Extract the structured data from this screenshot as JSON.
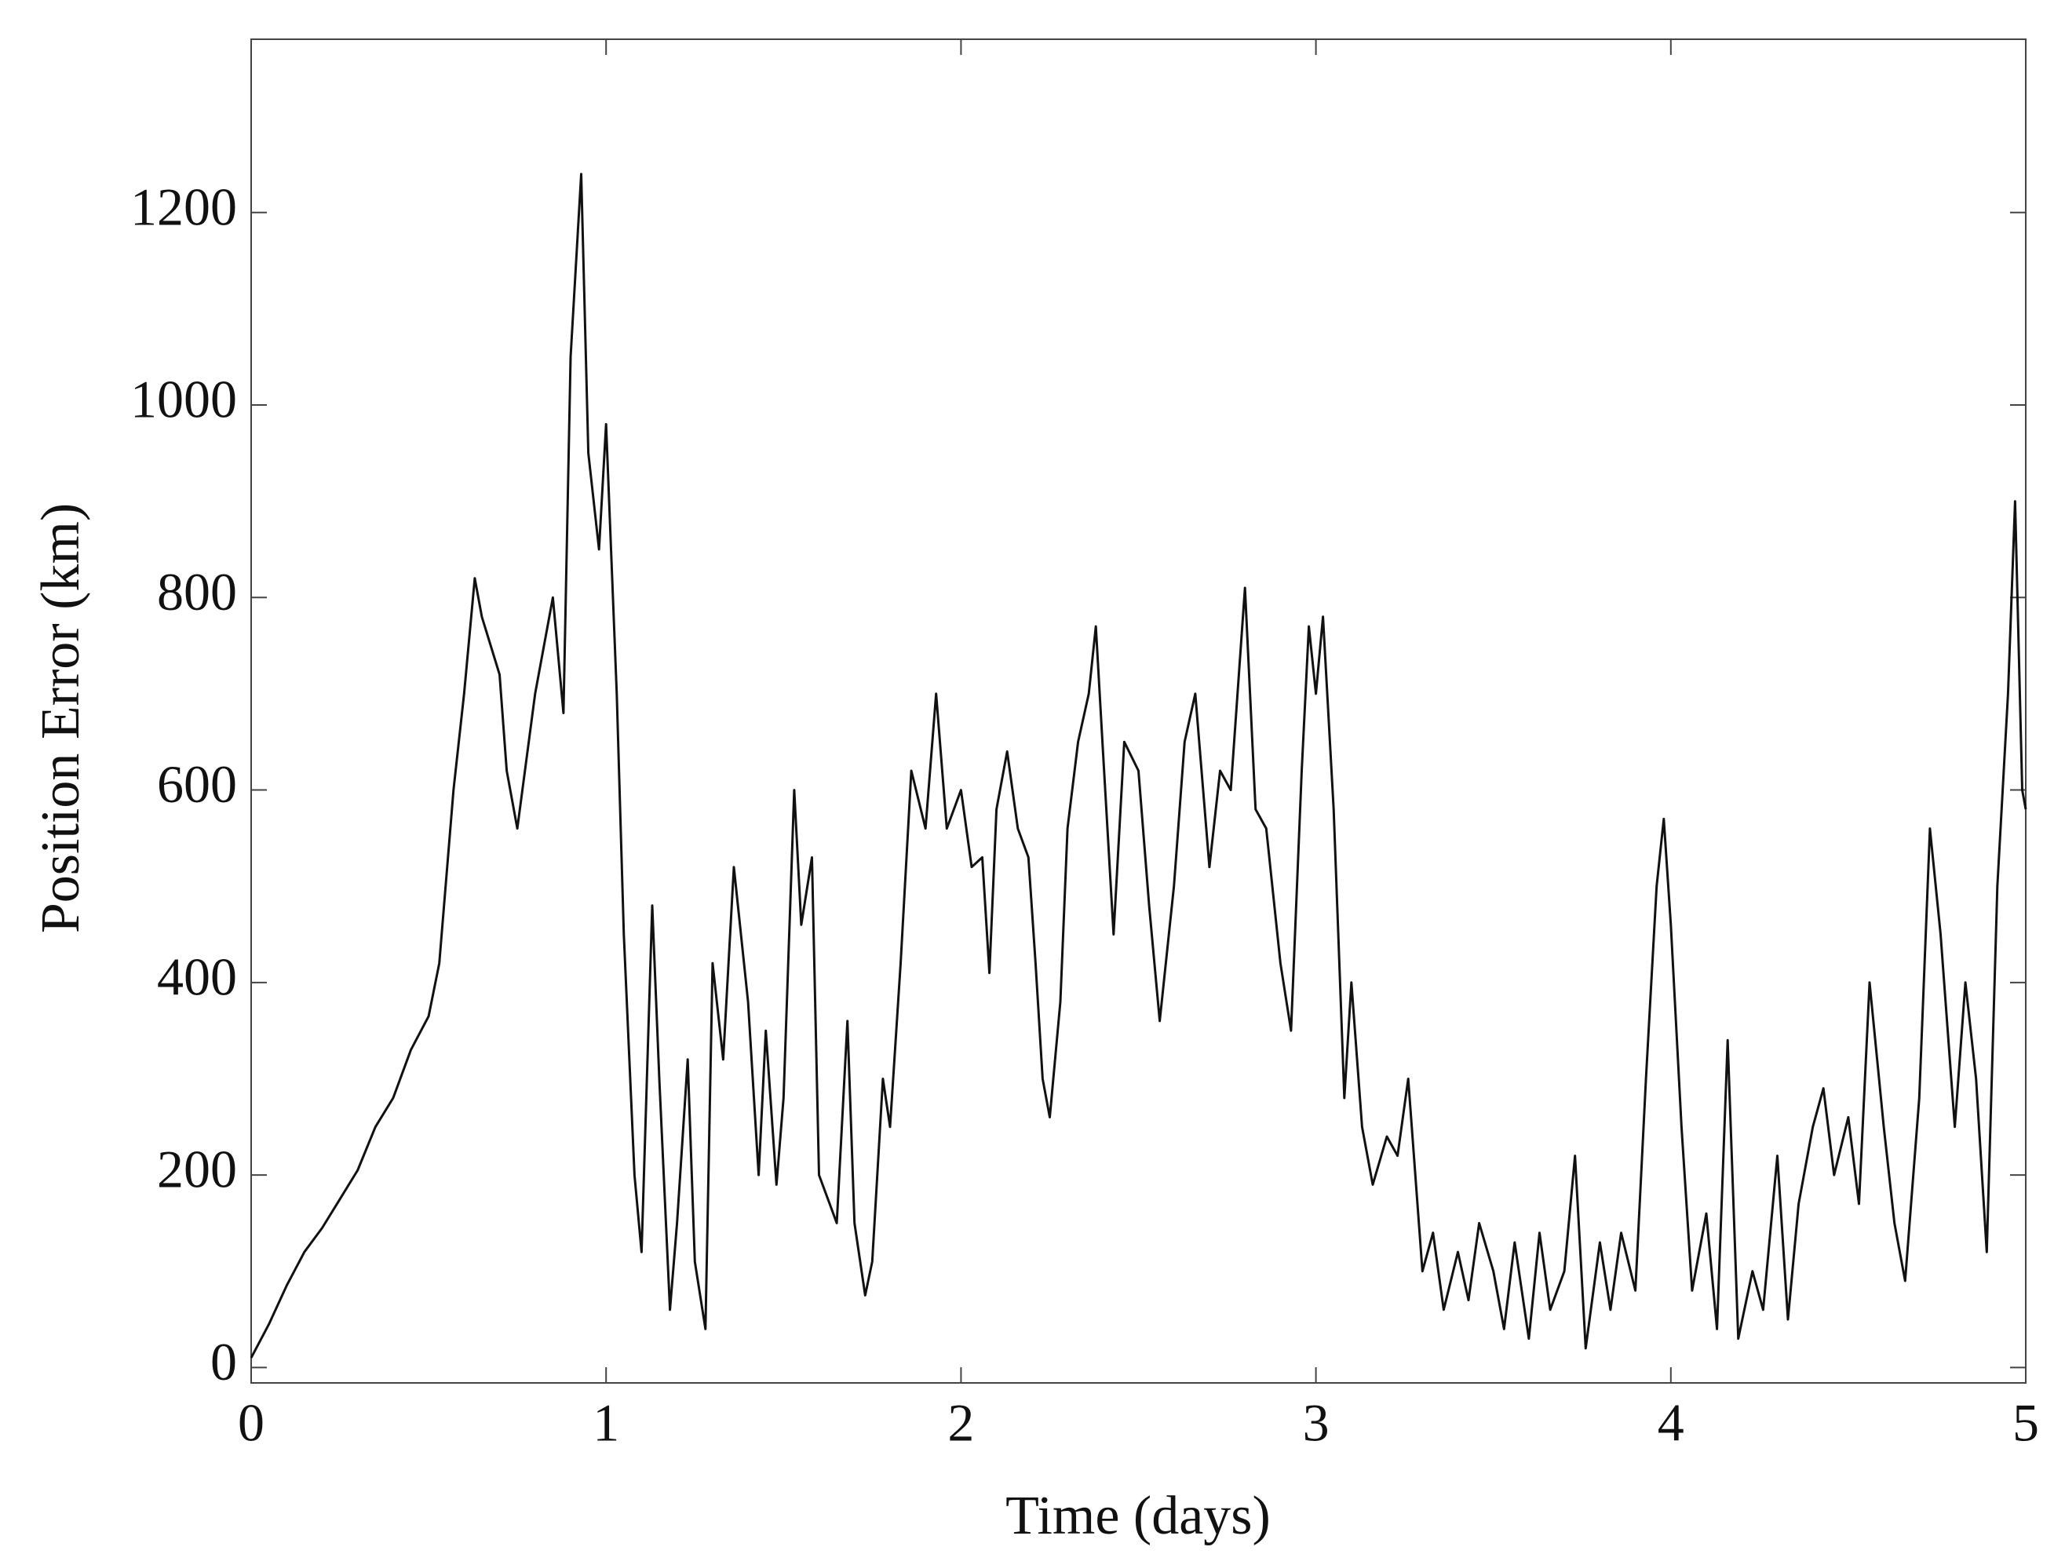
{
  "chart_data": {
    "type": "line",
    "xlabel": "Time (days)",
    "ylabel": "Position Error (km)",
    "xlim": [
      0,
      5
    ],
    "ylim": [
      -16,
      1380
    ],
    "xticks": [
      0,
      1,
      2,
      3,
      4,
      5
    ],
    "yticks": [
      0,
      200,
      400,
      600,
      800,
      1000,
      1200
    ],
    "grid": false,
    "series": [
      {
        "color": "#111111",
        "x": [
          0,
          0.05,
          0.1,
          0.15,
          0.2,
          0.25,
          0.3,
          0.35,
          0.4,
          0.45,
          0.5,
          0.53,
          0.57,
          0.6,
          0.63,
          0.65,
          0.7,
          0.72,
          0.75,
          0.8,
          0.85,
          0.88,
          0.9,
          0.93,
          0.95,
          0.98,
          1.0,
          1.03,
          1.05,
          1.08,
          1.1,
          1.13,
          1.15,
          1.18,
          1.2,
          1.23,
          1.25,
          1.28,
          1.3,
          1.33,
          1.36,
          1.4,
          1.43,
          1.45,
          1.48,
          1.5,
          1.53,
          1.55,
          1.58,
          1.6,
          1.63,
          1.65,
          1.68,
          1.7,
          1.73,
          1.75,
          1.78,
          1.8,
          1.83,
          1.86,
          1.9,
          1.93,
          1.96,
          2.0,
          2.03,
          2.06,
          2.08,
          2.1,
          2.13,
          2.16,
          2.19,
          2.21,
          2.23,
          2.25,
          2.28,
          2.3,
          2.33,
          2.36,
          2.38,
          2.4,
          2.43,
          2.46,
          2.5,
          2.53,
          2.56,
          2.6,
          2.63,
          2.66,
          2.7,
          2.73,
          2.76,
          2.8,
          2.83,
          2.86,
          2.9,
          2.93,
          2.96,
          2.98,
          3.0,
          3.02,
          3.05,
          3.08,
          3.1,
          3.13,
          3.16,
          3.2,
          3.23,
          3.26,
          3.3,
          3.33,
          3.36,
          3.4,
          3.43,
          3.46,
          3.5,
          3.53,
          3.56,
          3.6,
          3.63,
          3.66,
          3.7,
          3.73,
          3.76,
          3.8,
          3.83,
          3.86,
          3.9,
          3.93,
          3.96,
          3.98,
          4.0,
          4.03,
          4.06,
          4.1,
          4.13,
          4.16,
          4.19,
          4.23,
          4.26,
          4.3,
          4.33,
          4.36,
          4.4,
          4.43,
          4.46,
          4.5,
          4.53,
          4.56,
          4.6,
          4.63,
          4.66,
          4.7,
          4.73,
          4.76,
          4.8,
          4.83,
          4.86,
          4.89,
          4.92,
          4.95,
          4.97,
          4.99,
          5.0
        ],
        "values": [
          10,
          45,
          85,
          120,
          145,
          175,
          205,
          250,
          280,
          330,
          365,
          420,
          600,
          700,
          820,
          780,
          720,
          620,
          560,
          700,
          800,
          680,
          1050,
          1240,
          950,
          850,
          980,
          700,
          450,
          200,
          120,
          480,
          300,
          60,
          150,
          320,
          110,
          40,
          420,
          320,
          520,
          380,
          200,
          350,
          190,
          280,
          600,
          460,
          530,
          200,
          170,
          150,
          360,
          150,
          75,
          110,
          300,
          250,
          420,
          620,
          560,
          700,
          560,
          600,
          520,
          530,
          410,
          580,
          640,
          560,
          530,
          420,
          300,
          260,
          380,
          560,
          650,
          700,
          770,
          640,
          450,
          650,
          620,
          480,
          360,
          500,
          650,
          700,
          520,
          620,
          600,
          810,
          580,
          560,
          420,
          350,
          620,
          770,
          700,
          780,
          580,
          280,
          400,
          250,
          190,
          240,
          220,
          300,
          100,
          140,
          60,
          120,
          70,
          150,
          100,
          40,
          130,
          30,
          140,
          60,
          100,
          220,
          20,
          130,
          60,
          140,
          80,
          300,
          500,
          570,
          460,
          250,
          80,
          160,
          40,
          340,
          30,
          100,
          60,
          220,
          50,
          170,
          250,
          290,
          200,
          260,
          170,
          400,
          250,
          150,
          90,
          280,
          560,
          450,
          250,
          400,
          300,
          120,
          500,
          700,
          900,
          600,
          580
        ]
      }
    ]
  }
}
